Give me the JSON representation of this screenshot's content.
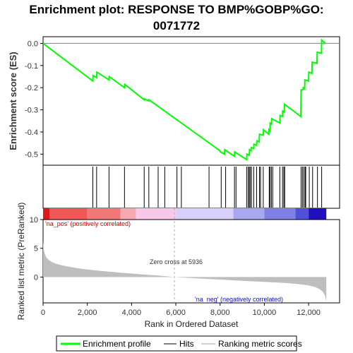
{
  "chart_data": {
    "type": "line",
    "title_lines": [
      "Enrichment plot: RESPONSE TO BMP%GOBP%GO:",
      "0071772"
    ],
    "es_panel": {
      "ylabel": "Enrichment score (ES)",
      "ylim": [
        -0.55,
        0.03
      ],
      "yticks": [
        0.0,
        -0.1,
        -0.2,
        -0.3,
        -0.4,
        -0.5
      ],
      "ytick_labels": [
        "0.0",
        "-0.1",
        "-0.2",
        "-0.3",
        "-0.4",
        "-0.5"
      ],
      "series": [
        {
          "name": "Enrichment profile",
          "color": "#00ff00",
          "x": [
            0,
            2250,
            2260,
            2420,
            2430,
            2980,
            2990,
            3680,
            3690,
            4570,
            4580,
            4780,
            4790,
            8000,
            8010,
            8200,
            8210,
            8650,
            8660,
            9200,
            9210,
            9320,
            9330,
            9400,
            9410,
            9520,
            9530,
            9650,
            9660,
            9770,
            9780,
            9950,
            9960,
            10200,
            10210,
            10250,
            10260,
            10320,
            10330,
            10700,
            10710,
            10820,
            10830,
            10900,
            10910,
            11650,
            11660,
            11750,
            11760,
            11820,
            11830,
            12000,
            12010,
            12150,
            12160,
            12380,
            12390,
            12580,
            12590,
            12750
          ],
          "y": [
            0.0,
            -0.17,
            -0.145,
            -0.155,
            -0.13,
            -0.165,
            -0.15,
            -0.2,
            -0.185,
            -0.255,
            -0.25,
            -0.26,
            -0.255,
            -0.485,
            -0.49,
            -0.5,
            -0.48,
            -0.51,
            -0.49,
            -0.525,
            -0.5,
            -0.505,
            -0.48,
            -0.485,
            -0.47,
            -0.475,
            -0.455,
            -0.46,
            -0.44,
            -0.445,
            -0.41,
            -0.415,
            -0.39,
            -0.41,
            -0.39,
            -0.395,
            -0.36,
            -0.365,
            -0.34,
            -0.36,
            -0.325,
            -0.33,
            -0.305,
            -0.31,
            -0.275,
            -0.33,
            -0.21,
            -0.21,
            -0.2,
            -0.205,
            -0.165,
            -0.17,
            -0.13,
            -0.135,
            -0.085,
            -0.09,
            -0.04,
            -0.045,
            0.015,
            0.0
          ]
        }
      ]
    },
    "hits": {
      "name": "Hits",
      "x": [
        2250,
        2420,
        2980,
        3680,
        4570,
        4780,
        5200,
        5500,
        6050,
        6250,
        7500,
        8050,
        8250,
        8650,
        8720,
        9200,
        9270,
        9320,
        9360,
        9420,
        9520,
        9650,
        9780,
        9830,
        9950,
        10220,
        10260,
        10320,
        10380,
        10700,
        10820,
        10880,
        10920,
        11660,
        11720,
        11780,
        11840,
        11870,
        12030,
        12180,
        12400,
        12590
      ]
    },
    "rank_colorbar": {
      "segments": [
        {
          "from": 0,
          "to": 300,
          "color": "#e01818"
        },
        {
          "from": 300,
          "to": 2000,
          "color": "#f05858"
        },
        {
          "from": 2000,
          "to": 3500,
          "color": "#f07878"
        },
        {
          "from": 3500,
          "to": 4200,
          "color": "#f8a8b0"
        },
        {
          "from": 4200,
          "to": 6000,
          "color": "#f8c8e8"
        },
        {
          "from": 6000,
          "to": 8600,
          "color": "#d8d0f8"
        },
        {
          "from": 8600,
          "to": 10000,
          "color": "#a8a8f0"
        },
        {
          "from": 10000,
          "to": 11400,
          "color": "#8080e8"
        },
        {
          "from": 11400,
          "to": 12000,
          "color": "#5050d8"
        },
        {
          "from": 12000,
          "to": 12800,
          "color": "#2010c0"
        }
      ]
    },
    "metric_panel": {
      "ylabel": "Ranked list metric (PreRanked)",
      "xlabel": "Rank in Ordered Dataset",
      "ylim": [
        -4.5,
        10
      ],
      "yticks": [
        10,
        5,
        0
      ],
      "ytick_labels": [
        "10",
        "5",
        "0"
      ],
      "xlim": [
        0,
        13400
      ],
      "xticks": [
        0,
        2000,
        4000,
        6000,
        8000,
        10000,
        12000
      ],
      "xtick_labels": [
        "0",
        "2,000",
        "4,000",
        "6,000",
        "8,000",
        "10,000",
        "12,000"
      ],
      "label_pos": "'na_pos' (positively correlated)",
      "label_neg": "'na_neg' (negatively correlated)",
      "zero_cross_label": "Zero cross at 5936",
      "zero_cross": 5936,
      "n_genes": 12800,
      "series": [
        {
          "name": "Ranking metric scores",
          "color": "#bebebe",
          "x": [
            0,
            30,
            80,
            150,
            250,
            400,
            600,
            900,
            1300,
            1800,
            2500,
            3500,
            4500,
            5200,
            5936,
            7000,
            8000,
            9000,
            10000,
            11000,
            11600,
            12000,
            12300,
            12500,
            12650,
            12750,
            12800
          ],
          "values": [
            6.3,
            4.8,
            4.0,
            3.4,
            3.0,
            2.6,
            2.3,
            2.0,
            1.7,
            1.4,
            1.1,
            0.75,
            0.45,
            0.25,
            0.0,
            -0.25,
            -0.45,
            -0.65,
            -0.85,
            -1.05,
            -1.25,
            -1.45,
            -1.75,
            -2.1,
            -2.6,
            -3.3,
            -4.3
          ]
        }
      ]
    },
    "legend": {
      "entries": [
        {
          "label": "Enrichment profile",
          "color": "#00ff00"
        },
        {
          "label": "Hits",
          "color": "#808080"
        },
        {
          "label": "Ranking metric scores",
          "color": "#d0d0d0"
        }
      ],
      "placement": "bottom"
    }
  }
}
